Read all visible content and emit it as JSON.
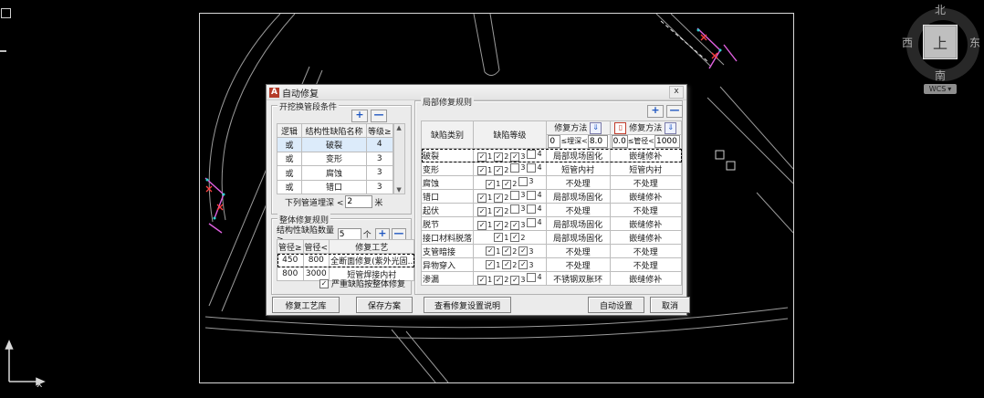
{
  "viewcube": {
    "north": "北",
    "south": "南",
    "west": "西",
    "east": "东",
    "top": "上",
    "wcs": "WCS",
    "wcs_arrow": "▾"
  },
  "ucs": {
    "x_label": "x"
  },
  "colors": {
    "accent_blue": "#1d55c0",
    "delete_red": "#c03a2a",
    "pipe_magenta": "#e060e0",
    "marker_red": "#ff4040",
    "road_gray": "#9b9b9b"
  },
  "dialog": {
    "title": "自动修复",
    "close_label": "x",
    "dig": {
      "title": "开挖换管段条件",
      "add_label": "+",
      "remove_label": "—",
      "table": {
        "headers": [
          "逻辑",
          "结构性缺陷名称",
          "等级≥"
        ],
        "rows": [
          [
            "或",
            "破裂",
            "4"
          ],
          [
            "或",
            "变形",
            "3"
          ],
          [
            "或",
            "腐蚀",
            "3"
          ],
          [
            "或",
            "错口",
            "3"
          ]
        ]
      },
      "depth_label": "下列管道埋深 <",
      "depth_value": "2",
      "depth_unit": "米"
    },
    "overall": {
      "title": "整体修复规则",
      "count_label": "结构性缺陷数量 ≥",
      "count_value": "5",
      "count_unit": "个",
      "add_label": "+",
      "remove_label": "—",
      "table": {
        "headers": [
          "管径≥",
          "管径<",
          "修复工艺"
        ],
        "rows": [
          [
            "450",
            "800",
            "全断面修复(紫外光固.."
          ],
          [
            "800",
            "3000",
            "短管焊接内衬"
          ]
        ]
      },
      "checkbox_label": "严重缺陷按整体修复",
      "checkbox_checked": true
    },
    "local": {
      "title": "局部修复规则",
      "add_label": "+",
      "remove_label": "—",
      "col_defect": "缺陷类别",
      "col_level": "缺陷等级",
      "col_method1": "修复方法",
      "col_method2": "修复方法",
      "range1": {
        "v1": "0",
        "op": "≤埋深<",
        "v2": "8.0"
      },
      "range2": {
        "v1": "0.0",
        "op": "≤管径<",
        "v2": "1000.0"
      },
      "rows": [
        {
          "name": "破裂",
          "selected": true,
          "levels": [
            {
              "n": "1",
              "checked": true
            },
            {
              "n": "2",
              "checked": true
            },
            {
              "n": "3",
              "checked": true
            },
            {
              "n": "4",
              "checked": false
            }
          ],
          "m1": "局部现场固化",
          "m2": "嵌缝修补"
        },
        {
          "name": "变形",
          "selected": false,
          "levels": [
            {
              "n": "1",
              "checked": true
            },
            {
              "n": "2",
              "checked": true
            },
            {
              "n": "3",
              "checked": false
            },
            {
              "n": "4",
              "checked": false
            }
          ],
          "m1": "短管内衬",
          "m2": "短管内衬"
        },
        {
          "name": "腐蚀",
          "selected": false,
          "levels": [
            {
              "n": "1",
              "checked": true
            },
            {
              "n": "2",
              "checked": true
            },
            {
              "n": "3",
              "checked": false
            }
          ],
          "m1": "不处理",
          "m2": "不处理"
        },
        {
          "name": "错口",
          "selected": false,
          "levels": [
            {
              "n": "1",
              "checked": true
            },
            {
              "n": "2",
              "checked": true
            },
            {
              "n": "3",
              "checked": false
            },
            {
              "n": "4",
              "checked": false
            }
          ],
          "m1": "局部现场固化",
          "m2": "嵌缝修补"
        },
        {
          "name": "起伏",
          "selected": false,
          "levels": [
            {
              "n": "1",
              "checked": true
            },
            {
              "n": "2",
              "checked": true
            },
            {
              "n": "3",
              "checked": false
            },
            {
              "n": "4",
              "checked": false
            }
          ],
          "m1": "不处理",
          "m2": "不处理"
        },
        {
          "name": "脱节",
          "selected": false,
          "levels": [
            {
              "n": "1",
              "checked": true
            },
            {
              "n": "2",
              "checked": true
            },
            {
              "n": "3",
              "checked": true
            },
            {
              "n": "4",
              "checked": false
            }
          ],
          "m1": "局部现场固化",
          "m2": "嵌缝修补"
        },
        {
          "name": "接口材料脱落",
          "selected": false,
          "levels": [
            {
              "n": "1",
              "checked": true
            },
            {
              "n": "2",
              "checked": true
            }
          ],
          "m1": "局部现场固化",
          "m2": "嵌缝修补"
        },
        {
          "name": "支管暗接",
          "selected": false,
          "levels": [
            {
              "n": "1",
              "checked": true
            },
            {
              "n": "2",
              "checked": true
            },
            {
              "n": "3",
              "checked": true
            }
          ],
          "m1": "不处理",
          "m2": "不处理"
        },
        {
          "name": "异物穿入",
          "selected": false,
          "levels": [
            {
              "n": "1",
              "checked": true
            },
            {
              "n": "2",
              "checked": true
            },
            {
              "n": "3",
              "checked": true
            }
          ],
          "m1": "不处理",
          "m2": "不处理"
        },
        {
          "name": "渗漏",
          "selected": false,
          "levels": [
            {
              "n": "1",
              "checked": true
            },
            {
              "n": "2",
              "checked": true
            },
            {
              "n": "3",
              "checked": true
            },
            {
              "n": "4",
              "checked": false
            }
          ],
          "m1": "不锈钢双胀环",
          "m2": "嵌缝修补"
        }
      ]
    },
    "buttons": {
      "library": "修复工艺库",
      "save": "保存方案",
      "doc": "查看修复设置说明",
      "auto": "自动设置",
      "cancel": "取消"
    }
  }
}
